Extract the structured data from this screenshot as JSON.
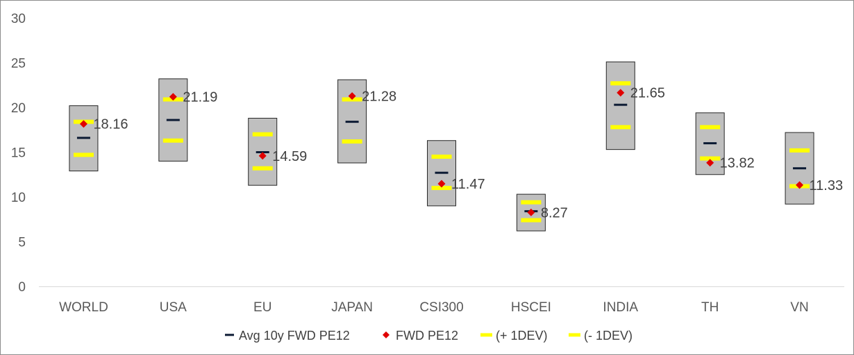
{
  "chart_data": {
    "type": "box",
    "title": "",
    "xlabel": "",
    "ylabel": "",
    "ylim": [
      0,
      30
    ],
    "yticks": [
      "0",
      "5",
      "10",
      "15",
      "20",
      "25",
      "30"
    ],
    "grid": false,
    "legend_position": "bottom",
    "categories": [
      "WORLD",
      "USA",
      "EU",
      "JAPAN",
      "CSI300",
      "HSCEI",
      "INDIA",
      "TH",
      "VN"
    ],
    "range_box": {
      "high": [
        20.2,
        23.2,
        18.8,
        23.1,
        16.3,
        10.3,
        25.1,
        19.4,
        17.2
      ],
      "low": [
        12.9,
        14.0,
        11.3,
        13.8,
        9.0,
        6.2,
        15.3,
        12.5,
        9.2
      ]
    },
    "series": [
      {
        "name": "Avg 10y FWD PE12",
        "color": "#0b1a33",
        "marker": "dash",
        "values": [
          16.6,
          18.6,
          15.0,
          18.4,
          12.7,
          8.4,
          20.3,
          16.0,
          13.2
        ]
      },
      {
        "name": "FWD PE12",
        "color": "#e00000",
        "marker": "diamond",
        "values": [
          18.16,
          21.19,
          14.59,
          21.28,
          11.47,
          8.27,
          21.65,
          13.82,
          11.33
        ],
        "labels": [
          "18.16",
          "21.19",
          "14.59",
          "21.28",
          "11.47",
          "8.27",
          "21.65",
          "13.82",
          "11.33"
        ]
      },
      {
        "name": "(+ 1DEV)",
        "color": "#ffff00",
        "marker": "dash",
        "values": [
          18.4,
          20.9,
          17.0,
          20.9,
          14.5,
          9.4,
          22.7,
          17.8,
          15.2
        ]
      },
      {
        "name": "(- 1DEV)",
        "color": "#ffff00",
        "marker": "dash",
        "values": [
          14.7,
          16.3,
          13.2,
          16.2,
          11.0,
          7.4,
          17.8,
          14.3,
          11.2
        ]
      }
    ]
  }
}
